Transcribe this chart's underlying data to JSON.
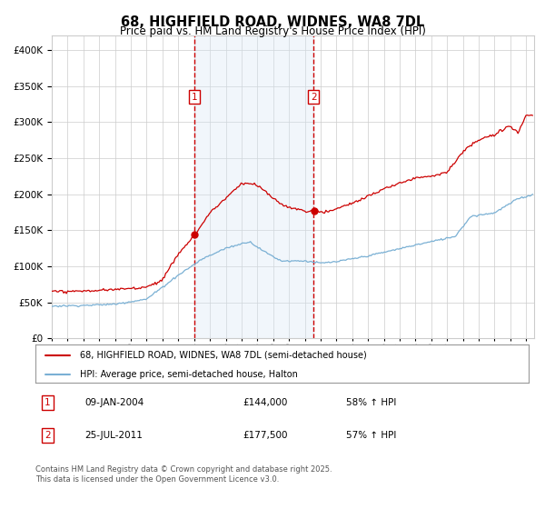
{
  "title": "68, HIGHFIELD ROAD, WIDNES, WA8 7DL",
  "subtitle": "Price paid vs. HM Land Registry's House Price Index (HPI)",
  "red_label": "68, HIGHFIELD ROAD, WIDNES, WA8 7DL (semi-detached house)",
  "blue_label": "HPI: Average price, semi-detached house, Halton",
  "transaction1": {
    "num": "1",
    "date": "09-JAN-2004",
    "price": "£144,000",
    "hpi": "58% ↑ HPI"
  },
  "transaction2": {
    "num": "2",
    "date": "25-JUL-2011",
    "price": "£177,500",
    "hpi": "57% ↑ HPI"
  },
  "footnote": "Contains HM Land Registry data © Crown copyright and database right 2025.\nThis data is licensed under the Open Government Licence v3.0.",
  "vline1_x": 2004.03,
  "vline2_x": 2011.56,
  "sale1_price": 144000,
  "sale2_price": 177500,
  "ylim_min": 0,
  "ylim_max": 420000,
  "xlim_min": 1995,
  "xlim_max": 2025.5,
  "red_color": "#cc0000",
  "blue_color": "#7ab0d4",
  "vline_color": "#cc0000",
  "shade_color": "#d8e8f5",
  "background_color": "#ffffff",
  "grid_color": "#cccccc",
  "title_fontsize": 11,
  "subtitle_fontsize": 9
}
